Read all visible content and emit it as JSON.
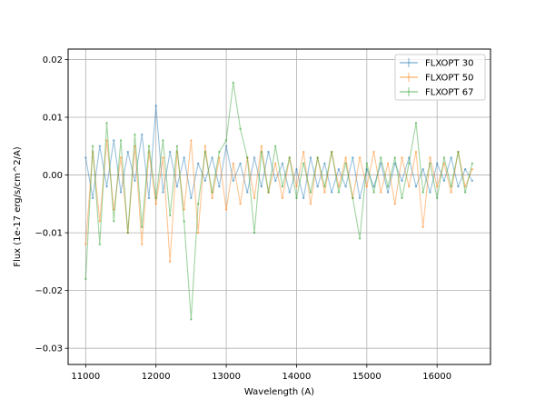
{
  "chart_data": {
    "type": "line",
    "title": "",
    "xlabel": "Wavelength (A)",
    "ylabel": "Flux (1e-17 erg/s/cm^2/A)",
    "xlim": [
      10750,
      16760
    ],
    "ylim": [
      -0.0328,
      0.0218
    ],
    "xticks": [
      11000,
      12000,
      13000,
      14000,
      15000,
      16000
    ],
    "xtick_labels": [
      "11000",
      "12000",
      "13000",
      "14000",
      "15000",
      "16000"
    ],
    "yticks": [
      -0.03,
      -0.02,
      -0.01,
      0.0,
      0.01,
      0.02
    ],
    "ytick_labels": [
      "−0.03",
      "−0.02",
      "−0.01",
      "0.00",
      "0.01",
      "0.02"
    ],
    "grid": true,
    "legend_position": "top-right",
    "series": [
      {
        "name": "FLXOPT 30",
        "color": "#1f77b4",
        "x": [
          11000,
          11100,
          11200,
          11300,
          11400,
          11500,
          11600,
          11700,
          11800,
          11900,
          12000,
          12100,
          12200,
          12300,
          12400,
          12500,
          12600,
          12700,
          12800,
          12900,
          13000,
          13100,
          13200,
          13300,
          13400,
          13500,
          13600,
          13700,
          13800,
          13900,
          14000,
          14100,
          14200,
          14300,
          14400,
          14500,
          14600,
          14700,
          14800,
          14900,
          15000,
          15100,
          15200,
          15300,
          15400,
          15500,
          15600,
          15700,
          15800,
          15900,
          16000,
          16100,
          16200,
          16300,
          16400,
          16500
        ],
        "y": [
          0.003,
          -0.004,
          0.005,
          -0.002,
          0.006,
          -0.003,
          0.004,
          -0.001,
          0.007,
          -0.004,
          0.012,
          -0.003,
          0.004,
          -0.002,
          0.003,
          -0.004,
          0.002,
          -0.001,
          0.003,
          -0.002,
          0.005,
          -0.001,
          0.002,
          -0.003,
          0.003,
          -0.002,
          0.004,
          -0.001,
          0.002,
          -0.003,
          0.001,
          -0.004,
          0.003,
          -0.002,
          0.002,
          -0.003,
          0.001,
          -0.002,
          0.003,
          -0.004,
          0.001,
          -0.002,
          0.002,
          -0.003,
          0.002,
          -0.001,
          0.003,
          -0.002,
          0.001,
          -0.003,
          0.002,
          -0.001,
          0.003,
          -0.002,
          0.001,
          -0.001
        ]
      },
      {
        "name": "FLXOPT 50",
        "color": "#ff7f0e",
        "x": [
          11000,
          11100,
          11200,
          11300,
          11400,
          11500,
          11600,
          11700,
          11800,
          11900,
          12000,
          12100,
          12200,
          12300,
          12400,
          12500,
          12600,
          12700,
          12800,
          12900,
          13000,
          13100,
          13200,
          13300,
          13400,
          13500,
          13600,
          13700,
          13800,
          13900,
          14000,
          14100,
          14200,
          14300,
          14400,
          14500,
          14600,
          14700,
          14800,
          14900,
          15000,
          15100,
          15200,
          15300,
          15400,
          15500,
          15600,
          15700,
          15800,
          15900,
          16000,
          16100,
          16200,
          16300,
          16400,
          16500
        ],
        "y": [
          -0.012,
          0.004,
          -0.008,
          0.006,
          -0.006,
          0.003,
          -0.01,
          0.005,
          -0.012,
          0.004,
          -0.005,
          0.003,
          -0.015,
          0.004,
          -0.006,
          0.006,
          -0.01,
          0.005,
          -0.004,
          0.003,
          -0.006,
          0.002,
          -0.005,
          0.003,
          -0.004,
          0.005,
          -0.003,
          0.002,
          -0.004,
          0.003,
          -0.002,
          0.004,
          -0.005,
          0.003,
          -0.003,
          0.004,
          -0.002,
          0.003,
          -0.004,
          0.003,
          -0.002,
          0.004,
          -0.003,
          0.002,
          -0.005,
          0.003,
          -0.002,
          0.004,
          -0.009,
          0.003,
          -0.002,
          0.002,
          -0.003,
          0.004,
          -0.002,
          0.001
        ]
      },
      {
        "name": "FLXOPT 67",
        "color": "#2ca02c",
        "x": [
          11000,
          11100,
          11200,
          11300,
          11400,
          11500,
          11600,
          11700,
          11800,
          11900,
          12000,
          12100,
          12200,
          12300,
          12400,
          12500,
          12600,
          12700,
          12800,
          12900,
          13000,
          13100,
          13200,
          13300,
          13400,
          13500,
          13600,
          13700,
          13800,
          13900,
          14000,
          14100,
          14200,
          14300,
          14400,
          14500,
          14600,
          14700,
          14800,
          14900,
          15000,
          15100,
          15200,
          15300,
          15400,
          15500,
          15600,
          15700,
          15800,
          15900,
          16000,
          16100,
          16200,
          16300,
          16400,
          16500
        ],
        "y": [
          -0.018,
          0.005,
          -0.012,
          0.009,
          -0.008,
          0.006,
          -0.01,
          0.007,
          -0.009,
          0.005,
          -0.004,
          0.006,
          -0.007,
          0.005,
          -0.008,
          -0.025,
          -0.005,
          0.004,
          -0.003,
          0.004,
          0.006,
          0.016,
          0.008,
          0.003,
          -0.01,
          0.004,
          -0.003,
          0.005,
          -0.002,
          0.003,
          -0.004,
          0.002,
          -0.003,
          0.003,
          -0.002,
          0.004,
          -0.003,
          0.002,
          -0.004,
          -0.011,
          0.002,
          -0.003,
          0.003,
          -0.002,
          0.003,
          -0.004,
          0.002,
          0.009,
          -0.003,
          0.002,
          -0.004,
          0.003,
          -0.002,
          0.004,
          -0.003,
          0.002
        ]
      }
    ]
  }
}
